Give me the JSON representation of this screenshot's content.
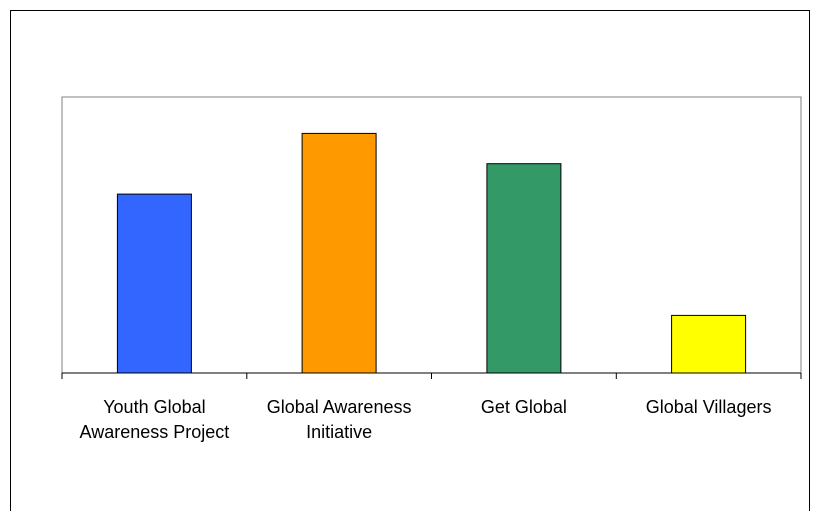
{
  "chart_data": {
    "type": "bar",
    "title": "",
    "xlabel": "",
    "ylabel": "",
    "categories": [
      "Youth Global Awareness Project",
      "Global Awareness Initiative",
      "Get Global",
      "Global Villagers"
    ],
    "category_label_lines": [
      [
        "Youth Global",
        "Awareness Project"
      ],
      [
        "Global Awareness",
        "Initiative"
      ],
      [
        "Get Global"
      ],
      [
        "Global Villagers"
      ]
    ],
    "values": [
      59,
      79,
      69,
      19
    ],
    "ylim": [
      0,
      91
    ],
    "bar_colors": [
      "#3366ff",
      "#ff9900",
      "#339966",
      "#ffff00"
    ],
    "grid": false,
    "legend": "none",
    "plot_border_color": "#808080",
    "axis_color": "#000000"
  }
}
